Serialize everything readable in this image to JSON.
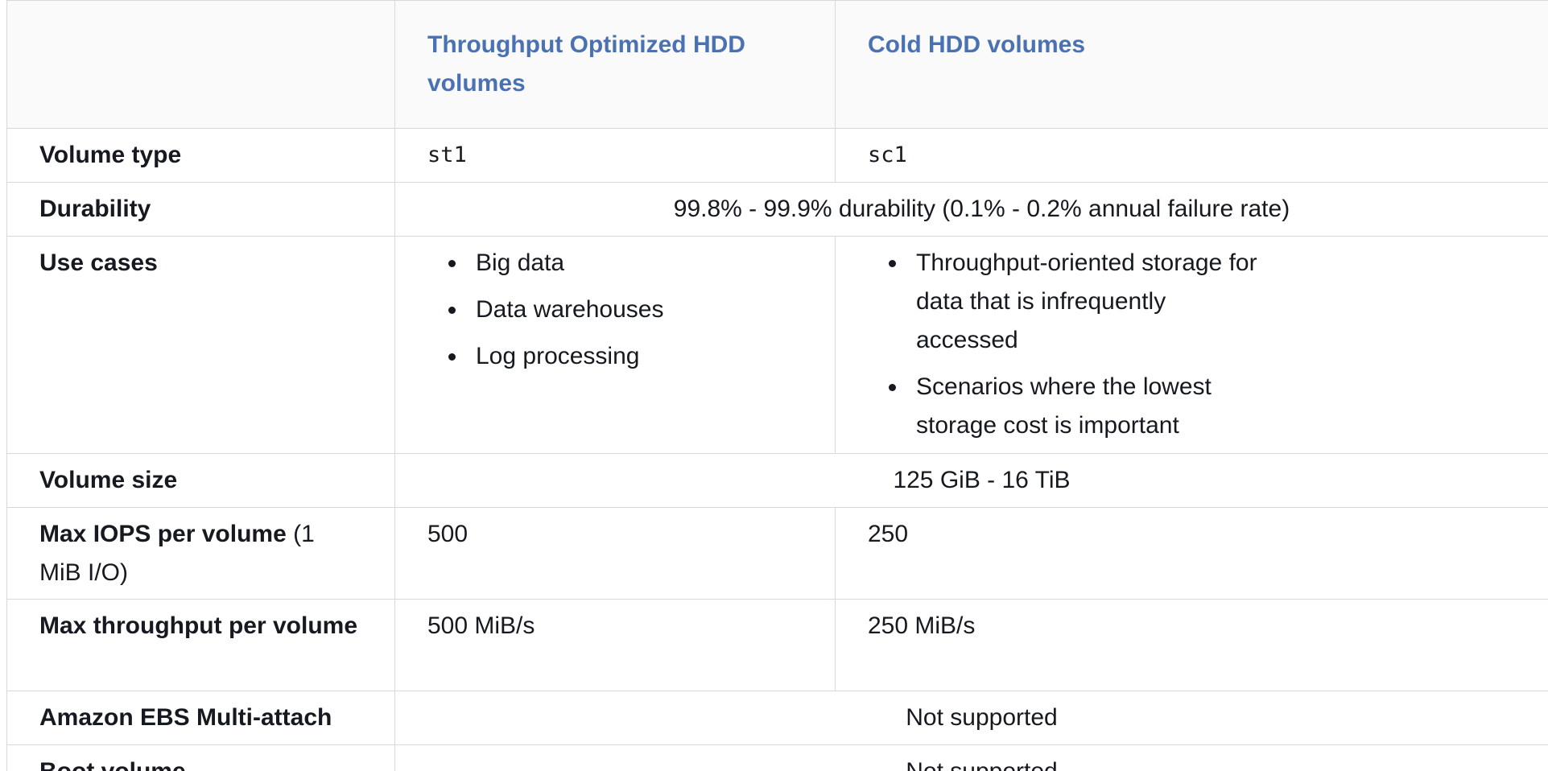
{
  "table": {
    "headers": {
      "col1": "",
      "col2": "Throughput Optimized HDD volumes",
      "col3": "Cold HDD volumes"
    },
    "rows": {
      "volume_type": {
        "label": "Volume type",
        "st1": "st1",
        "sc1": "sc1"
      },
      "durability": {
        "label": "Durability",
        "value": "99.8% - 99.9% durability (0.1% - 0.2% annual failure rate)"
      },
      "use_cases": {
        "label": "Use cases",
        "st1": [
          "Big data",
          "Data warehouses",
          "Log processing"
        ],
        "sc1": [
          "Throughput-oriented storage for data that is infrequently accessed",
          "Scenarios where the lowest storage cost is important"
        ]
      },
      "volume_size": {
        "label": "Volume size",
        "value": "125 GiB - 16 TiB"
      },
      "max_iops": {
        "label_bold": "Max IOPS per volume",
        "label_normal": " (1 MiB I/O)",
        "st1": "500",
        "sc1": "250"
      },
      "max_throughput": {
        "label": "Max throughput per volume",
        "st1": "500 MiB/s",
        "sc1": "250 MiB/s"
      },
      "multi_attach": {
        "label": "Amazon EBS Multi-attach",
        "value": "Not supported"
      },
      "boot_volume": {
        "label": "Boot volume",
        "value": "Not supported"
      }
    }
  }
}
